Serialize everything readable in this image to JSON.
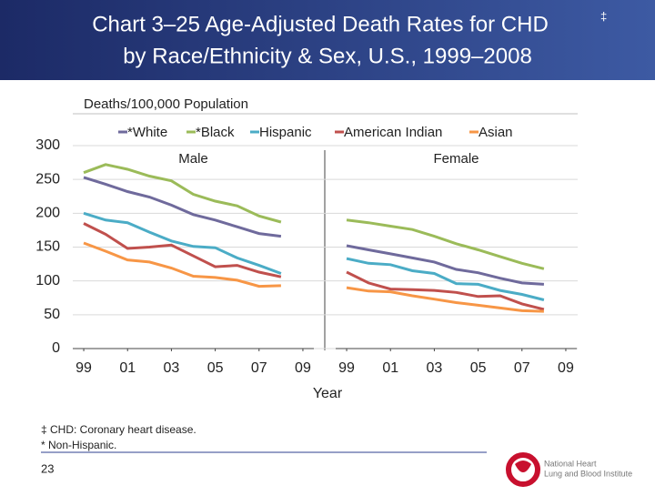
{
  "chart_data": {
    "type": "line",
    "title_lines": [
      "Chart 3–25 Age-Adjusted Death Rates for CHD",
      "by Race/Ethnicity & Sex, U.S., 1999–2008"
    ],
    "title_mark": "‡",
    "ylabel": "Deaths/100,000 Population",
    "xlabel": "Year",
    "ylim": [
      0,
      300
    ],
    "yticks": [
      0,
      50,
      100,
      150,
      200,
      250,
      300
    ],
    "grid": true,
    "series": [
      {
        "name": "*White",
        "color": "#6f6a9c"
      },
      {
        "name": "*Black",
        "color": "#9bbb59"
      },
      {
        "name": "Hispanic",
        "color": "#4bacc6"
      },
      {
        "name": "American Indian",
        "color": "#c0504d"
      },
      {
        "name": "Asian",
        "color": "#f79646"
      }
    ],
    "panels": [
      {
        "title": "Male",
        "xlim": [
          1998.5,
          2009.5
        ],
        "xticks": [
          {
            "value": 1999,
            "label": "99"
          },
          {
            "value": 2001,
            "label": "01"
          },
          {
            "value": 2003,
            "label": "03"
          },
          {
            "value": 2005,
            "label": "05"
          },
          {
            "value": 2007,
            "label": "07"
          },
          {
            "value": 2009,
            "label": "09"
          }
        ],
        "x": [
          1999,
          2000,
          2001,
          2002,
          2003,
          2004,
          2005,
          2006,
          2007,
          2008
        ],
        "values": [
          [
            253,
            243,
            232,
            224,
            212,
            198,
            190,
            180,
            170,
            166
          ],
          [
            260,
            272,
            265,
            255,
            248,
            228,
            218,
            211,
            196,
            187
          ],
          [
            200,
            190,
            186,
            172,
            159,
            151,
            149,
            134,
            123,
            111
          ],
          [
            185,
            169,
            148,
            150,
            153,
            137,
            121,
            123,
            113,
            106
          ],
          [
            156,
            144,
            131,
            128,
            119,
            107,
            105,
            101,
            92,
            93
          ]
        ]
      },
      {
        "title": "Female",
        "xlim": [
          1998.5,
          2009.5
        ],
        "xticks": [
          {
            "value": 1999,
            "label": "99"
          },
          {
            "value": 2001,
            "label": "01"
          },
          {
            "value": 2003,
            "label": "03"
          },
          {
            "value": 2005,
            "label": "05"
          },
          {
            "value": 2007,
            "label": "07"
          },
          {
            "value": 2009,
            "label": "09"
          }
        ],
        "x": [
          1999,
          2000,
          2001,
          2002,
          2003,
          2004,
          2005,
          2006,
          2007,
          2008
        ],
        "values": [
          [
            152,
            146,
            140,
            134,
            128,
            117,
            112,
            104,
            97,
            95
          ],
          [
            190,
            186,
            181,
            176,
            166,
            155,
            146,
            136,
            126,
            118
          ],
          [
            133,
            126,
            124,
            115,
            111,
            96,
            95,
            86,
            80,
            72
          ],
          [
            113,
            97,
            88,
            87,
            86,
            83,
            77,
            78,
            66,
            58
          ],
          [
            90,
            85,
            84,
            78,
            73,
            68,
            64,
            60,
            56,
            55
          ]
        ]
      }
    ],
    "footnotes": [
      "‡ CHD: Coronary heart disease.",
      "* Non-Hispanic."
    ],
    "page_number": "23",
    "logo": [
      "National Heart",
      "Lung and Blood Institute"
    ]
  }
}
